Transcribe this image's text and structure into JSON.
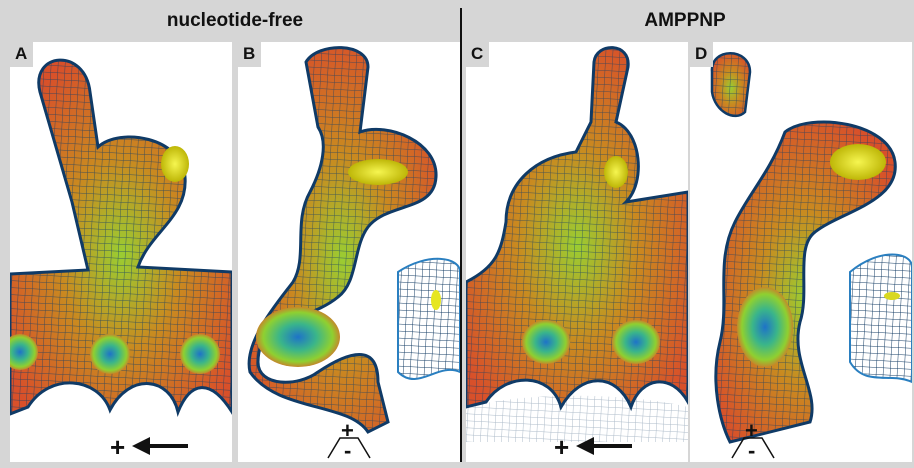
{
  "headers": [
    "nucleotide-free",
    "AMPPNP"
  ],
  "panels": [
    {
      "label": "A",
      "symbols": [
        "+"
      ]
    },
    {
      "label": "B",
      "symbols": [
        "+",
        "-"
      ]
    },
    {
      "label": "C",
      "symbols": [
        "+"
      ]
    },
    {
      "label": "D",
      "symbols": [
        "+",
        "-"
      ]
    }
  ]
}
